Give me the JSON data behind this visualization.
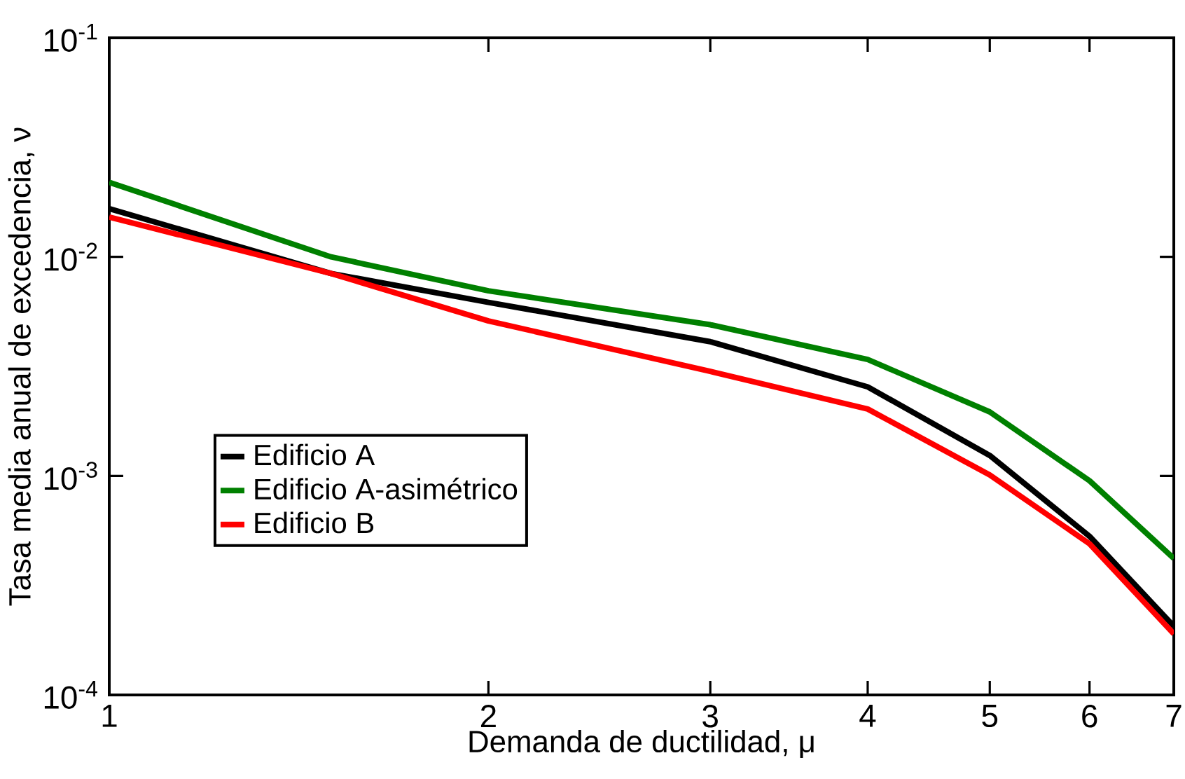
{
  "chart_data": {
    "type": "line",
    "xlabel": "Demanda de ductilidad, μ",
    "ylabel": "Tasa media anual de excedencia, ν",
    "x": [
      1,
      1.5,
      2,
      3,
      4,
      5,
      6,
      7
    ],
    "series": [
      {
        "name": "Edificio A",
        "color": "#000000",
        "values": [
          0.0166,
          0.0084,
          0.0062,
          0.0041,
          0.00255,
          0.00124,
          0.00053,
          0.000206
        ]
      },
      {
        "name": "Edificio A-asimétrico",
        "color": "#008000",
        "values": [
          0.0219,
          0.01,
          0.007,
          0.0049,
          0.0034,
          0.00196,
          0.00095,
          0.00042
        ]
      },
      {
        "name": "Edificio B",
        "color": "#ff0000",
        "values": [
          0.0152,
          0.0084,
          0.0051,
          0.003,
          0.00202,
          0.00101,
          0.00049,
          0.00019
        ]
      }
    ],
    "log": "xy",
    "xlim": [
      1,
      7
    ],
    "ylim": [
      0.0001,
      0.1
    ],
    "xticks": [
      1,
      2,
      3,
      4,
      5,
      6,
      7
    ],
    "yticks": [
      {
        "value": 0.0001,
        "label": "10$^{-4}$"
      },
      {
        "value": 0.001,
        "label": "10$^{-3}$"
      },
      {
        "value": 0.01,
        "label": "10$^{-2}$"
      },
      {
        "value": 0.1,
        "label": "10$^{-1}$"
      }
    ],
    "legend": "left"
  }
}
